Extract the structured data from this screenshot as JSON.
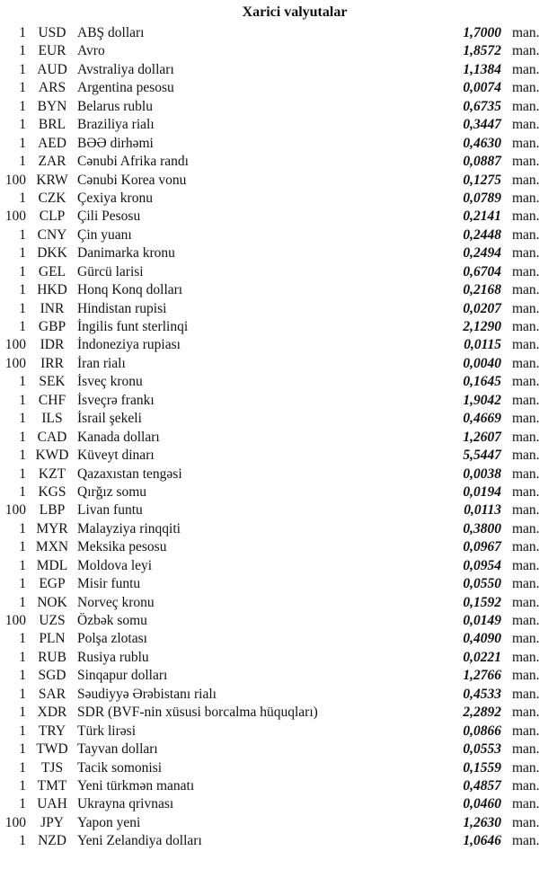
{
  "title": "Xarici valyutalar",
  "unit": "man.",
  "rows": [
    {
      "nominal": "1",
      "code": "USD",
      "name": "ABŞ dolları",
      "rate": "1,7000"
    },
    {
      "nominal": "1",
      "code": "EUR",
      "name": "Avro",
      "rate": "1,8572"
    },
    {
      "nominal": "1",
      "code": "AUD",
      "name": "Avstraliya dolları",
      "rate": "1,1384"
    },
    {
      "nominal": "1",
      "code": "ARS",
      "name": "Argentina pesosu",
      "rate": "0,0074"
    },
    {
      "nominal": "1",
      "code": "BYN",
      "name": "Belarus rublu",
      "rate": "0,6735"
    },
    {
      "nominal": "1",
      "code": "BRL",
      "name": "Braziliya rialı",
      "rate": "0,3447"
    },
    {
      "nominal": "1",
      "code": "AED",
      "name": "BƏƏ dirhəmi",
      "rate": "0,4630"
    },
    {
      "nominal": "1",
      "code": "ZAR",
      "name": "Cənubi Afrika randı",
      "rate": "0,0887"
    },
    {
      "nominal": "100",
      "code": "KRW",
      "name": "Cənubi Korea vonu",
      "rate": "0,1275"
    },
    {
      "nominal": "1",
      "code": "CZK",
      "name": "Çexiya kronu",
      "rate": "0,0789"
    },
    {
      "nominal": "100",
      "code": "CLP",
      "name": "Çili Pesosu",
      "rate": "0,2141"
    },
    {
      "nominal": "1",
      "code": "CNY",
      "name": "Çin yuanı",
      "rate": "0,2448"
    },
    {
      "nominal": "1",
      "code": "DKK",
      "name": "Danimarka kronu",
      "rate": "0,2494"
    },
    {
      "nominal": "1",
      "code": "GEL",
      "name": "Gürcü larisi",
      "rate": "0,6704"
    },
    {
      "nominal": "1",
      "code": "HKD",
      "name": "Honq Konq dolları",
      "rate": "0,2168"
    },
    {
      "nominal": "1",
      "code": "INR",
      "name": "Hindistan rupisi",
      "rate": "0,0207"
    },
    {
      "nominal": "1",
      "code": "GBP",
      "name": "İngilis funt sterlinqi",
      "rate": "2,1290"
    },
    {
      "nominal": "100",
      "code": "IDR",
      "name": "İndoneziya rupiası",
      "rate": "0,0115"
    },
    {
      "nominal": "100",
      "code": "IRR",
      "name": "İran rialı",
      "rate": "0,0040"
    },
    {
      "nominal": "1",
      "code": "SEK",
      "name": "İsveç kronu",
      "rate": "0,1645"
    },
    {
      "nominal": "1",
      "code": "CHF",
      "name": "İsveçrə frankı",
      "rate": "1,9042"
    },
    {
      "nominal": "1",
      "code": "ILS",
      "name": "İsrail şekeli",
      "rate": "0,4669"
    },
    {
      "nominal": "1",
      "code": "CAD",
      "name": "Kanada dolları",
      "rate": "1,2607"
    },
    {
      "nominal": "1",
      "code": "KWD",
      "name": "Küveyt dinarı",
      "rate": "5,5447"
    },
    {
      "nominal": "1",
      "code": "KZT",
      "name": "Qazaxıstan tengəsi",
      "rate": "0,0038"
    },
    {
      "nominal": "1",
      "code": "KGS",
      "name": "Qırğız somu",
      "rate": "0,0194"
    },
    {
      "nominal": "100",
      "code": "LBP",
      "name": "Livan funtu",
      "rate": "0,0113"
    },
    {
      "nominal": "1",
      "code": "MYR",
      "name": "Malayziya rinqqiti",
      "rate": "0,3800"
    },
    {
      "nominal": "1",
      "code": "MXN",
      "name": "Meksika pesosu",
      "rate": "0,0967"
    },
    {
      "nominal": "1",
      "code": "MDL",
      "name": "Moldova leyi",
      "rate": "0,0954"
    },
    {
      "nominal": "1",
      "code": "EGP",
      "name": "Misir funtu",
      "rate": "0,0550"
    },
    {
      "nominal": "1",
      "code": "NOK",
      "name": "Norveç kronu",
      "rate": "0,1592"
    },
    {
      "nominal": "100",
      "code": "UZS",
      "name": "Özbək somu",
      "rate": "0,0149"
    },
    {
      "nominal": "1",
      "code": "PLN",
      "name": "Polşa zlotası",
      "rate": "0,4090"
    },
    {
      "nominal": "1",
      "code": "RUB",
      "name": "Rusiya rublu",
      "rate": "0,0221"
    },
    {
      "nominal": "1",
      "code": "SGD",
      "name": "Sinqapur dolları",
      "rate": "1,2766"
    },
    {
      "nominal": "1",
      "code": "SAR",
      "name": "Səudiyyə Ərəbistanı rialı",
      "rate": "0,4533"
    },
    {
      "nominal": "1",
      "code": "XDR",
      "name": "SDR (BVF-nin xüsusi borcalma hüquqları)",
      "rate": "2,2892"
    },
    {
      "nominal": "1",
      "code": "TRY",
      "name": "Türk lirəsi",
      "rate": "0,0866"
    },
    {
      "nominal": "1",
      "code": "TWD",
      "name": "Tayvan dolları",
      "rate": "0,0553"
    },
    {
      "nominal": "1",
      "code": "TJS",
      "name": "Tacik somonisi",
      "rate": "0,1559"
    },
    {
      "nominal": "1",
      "code": "TMT",
      "name": "Yeni türkmən manatı",
      "rate": "0,4857"
    },
    {
      "nominal": "1",
      "code": "UAH",
      "name": "Ukrayna qrivnası",
      "rate": "0,0460"
    },
    {
      "nominal": "100",
      "code": "JPY",
      "name": "Yapon yeni",
      "rate": "1,2630"
    },
    {
      "nominal": "1",
      "code": "NZD",
      "name": "Yeni Zelandiya dolları",
      "rate": "1,0646"
    }
  ]
}
